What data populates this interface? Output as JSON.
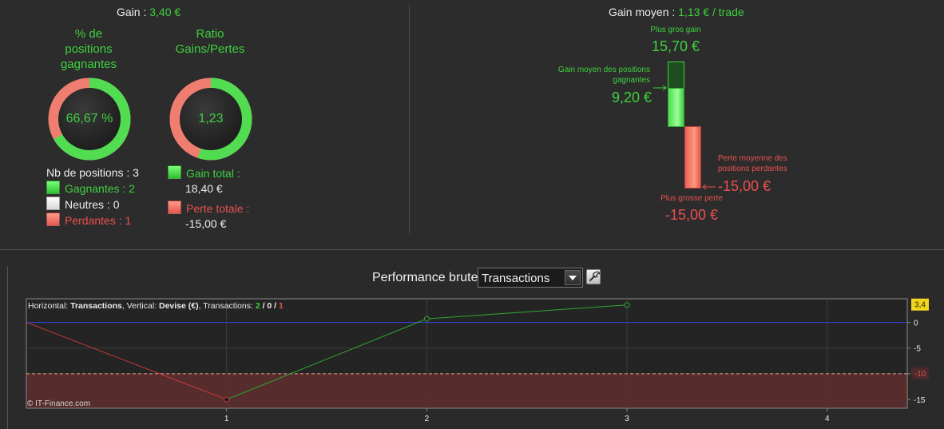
{
  "gain": {
    "label": "Gain :",
    "value": "3,40 €"
  },
  "gain_moyen": {
    "label": "Gain moyen :",
    "value": "1,13 € / trade"
  },
  "pct_gagnantes": {
    "title_line1": "% de",
    "title_line2": "positions",
    "title_line3": "gagnantes",
    "value": "66,67 %",
    "fraction": 0.6667
  },
  "ratio": {
    "title_line1": "Ratio",
    "title_line2": "Gains/Pertes",
    "value": "1,23",
    "fraction": 0.551
  },
  "positions": {
    "nb_label": "Nb de positions : 3",
    "gagnantes": "Gagnantes : 2",
    "neutres": "Neutres : 0",
    "perdantes": "Perdantes : 1"
  },
  "totals": {
    "gain_label": "Gain total :",
    "gain_value": "18,40 €",
    "perte_label": "Perte totale :",
    "perte_value": "-15,00 €"
  },
  "bars": {
    "plus_gros_gain_label": "Plus gros gain",
    "plus_gros_gain_value": "15,70 €",
    "gain_moyen_pos_line1": "Gain moyen des positions",
    "gain_moyen_pos_line2": "gagnantes",
    "gain_moyen_pos_value": "9,20 €",
    "perte_moyenne_line1": "Perte moyenne des",
    "perte_moyenne_line2": "positions perdantes",
    "perte_moyenne_value": "-15,00 €",
    "plus_grosse_perte_label": "Plus grosse perte",
    "plus_grosse_perte_value": "-15,00 €"
  },
  "toolbar": {
    "perf_label": "Performance brute",
    "select_value": "Transactions"
  },
  "chart_info": {
    "horizontal_prefix": "Horizontal: ",
    "horizontal_value": "Transactions",
    "vertical_prefix": ", Vertical: ",
    "vertical_value": "Devise (€)",
    "transactions_prefix": ", Transactions: ",
    "t_green": "2",
    "t_sep1": " / ",
    "t_white": "0",
    "t_sep2": " / ",
    "t_red": "1",
    "copyright": "© IT-Finance.com"
  },
  "colors": {
    "green": "#3ed13e",
    "red": "#e8514f",
    "blue_line": "#2f3fe0",
    "yellow_badge": "#f2d61b"
  },
  "chart_data": {
    "type": "line",
    "x": [
      0,
      1,
      2,
      3
    ],
    "y": [
      0,
      -15,
      0.7,
      3.4
    ],
    "xlim": [
      0,
      4.4
    ],
    "ylim": [
      -16.7,
      4.6
    ],
    "x_ticks": [
      "1",
      "2",
      "3",
      "4"
    ],
    "y_ticks": [
      "0",
      "-5",
      "-10",
      "-15"
    ],
    "current_value_label": "3,4",
    "threshold_label": "-10",
    "threshold": -10,
    "zero_line": 0
  }
}
